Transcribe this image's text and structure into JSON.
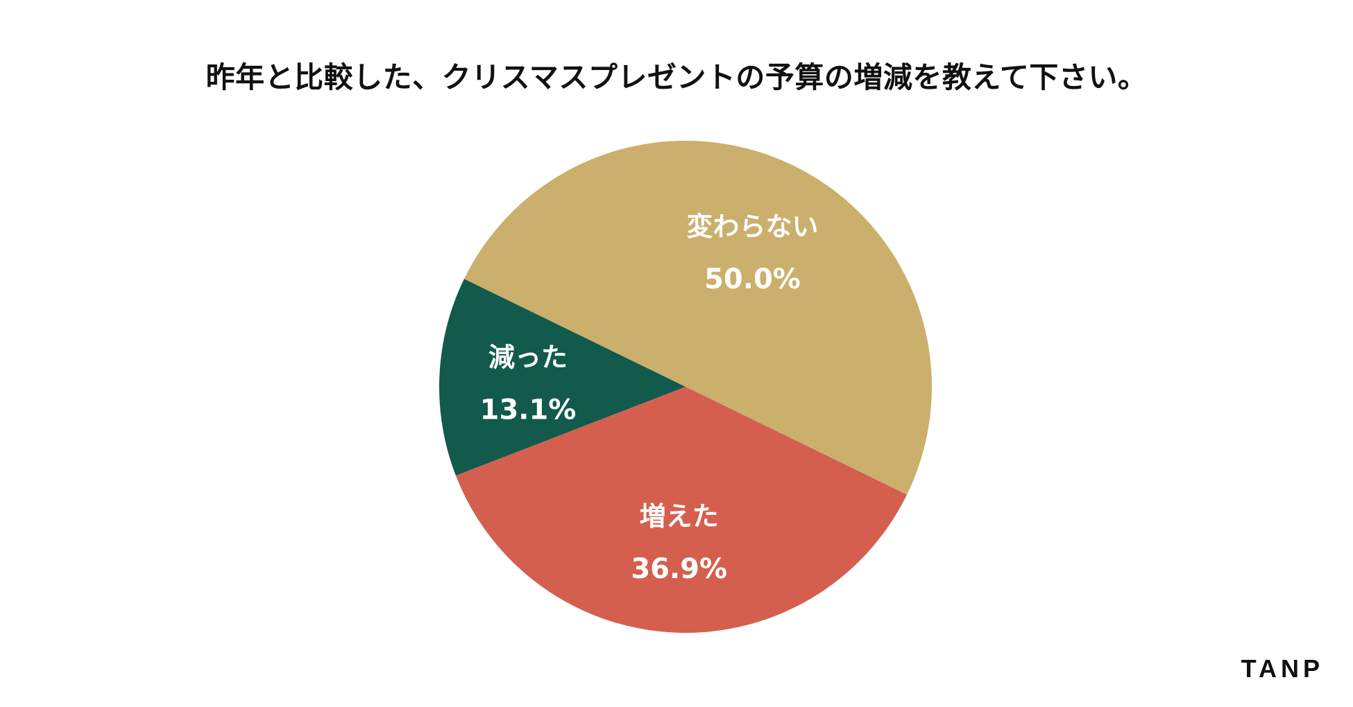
{
  "chart_data": {
    "type": "pie",
    "title": "昨年と比較した、クリスマスプレゼントの予算の増減を教えて下さい。",
    "categories": [
      "変わらない",
      "増えた",
      "減った"
    ],
    "values": [
      50.0,
      36.9,
      13.1
    ],
    "value_labels": [
      "50.0%",
      "36.9%",
      "13.1%"
    ],
    "colors": [
      "#CBAF6C",
      "#D55F4E",
      "#125A4B"
    ],
    "start_direction": "upper-left, clockwise",
    "legend": "none"
  },
  "brand": {
    "name": "TANP"
  }
}
